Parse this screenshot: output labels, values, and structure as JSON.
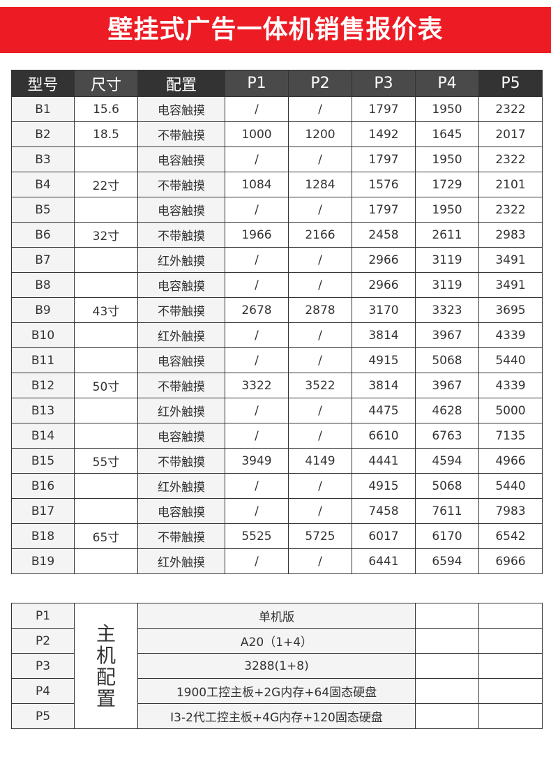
{
  "title": "壁挂式广告一体机销售报价表",
  "colors": {
    "banner": "#ed1c24",
    "header_dark": "#333333",
    "header_light": "#4a4a4a",
    "cell_gray": "#f4f4f4"
  },
  "price_table": {
    "headers": [
      "型号",
      "尺寸",
      "配置",
      "P1",
      "P2",
      "P3",
      "P4",
      "P5"
    ],
    "rows": [
      [
        "B1",
        "15.6",
        "电容触摸",
        "/",
        "/",
        "1797",
        "1950",
        "2322"
      ],
      [
        "B2",
        "18.5",
        "不带触摸",
        "1000",
        "1200",
        "1492",
        "1645",
        "2017"
      ],
      [
        "B3",
        "",
        "电容触摸",
        "/",
        "/",
        "1797",
        "1950",
        "2322"
      ],
      [
        "B4",
        "22寸",
        "不带触摸",
        "1084",
        "1284",
        "1576",
        "1729",
        "2101"
      ],
      [
        "B5",
        "",
        "电容触摸",
        "/",
        "/",
        "1797",
        "1950",
        "2322"
      ],
      [
        "B6",
        "32寸",
        "不带触摸",
        "1966",
        "2166",
        "2458",
        "2611",
        "2983"
      ],
      [
        "B7",
        "",
        "红外触摸",
        "/",
        "/",
        "2966",
        "3119",
        "3491"
      ],
      [
        "B8",
        "",
        "电容触摸",
        "/",
        "/",
        "2966",
        "3119",
        "3491"
      ],
      [
        "B9",
        "43寸",
        "不带触摸",
        "2678",
        "2878",
        "3170",
        "3323",
        "3695"
      ],
      [
        "B10",
        "",
        "红外触摸",
        "/",
        "/",
        "3814",
        "3967",
        "4339"
      ],
      [
        "B11",
        "",
        "电容触摸",
        "/",
        "/",
        "4915",
        "5068",
        "5440"
      ],
      [
        "B12",
        "50寸",
        "不带触摸",
        "3322",
        "3522",
        "3814",
        "3967",
        "4339"
      ],
      [
        "B13",
        "",
        "红外触摸",
        "/",
        "/",
        "4475",
        "4628",
        "5000"
      ],
      [
        "B14",
        "",
        "电容触摸",
        "/",
        "/",
        "6610",
        "6763",
        "7135"
      ],
      [
        "B15",
        "55寸",
        "不带触摸",
        "3949",
        "4149",
        "4441",
        "4594",
        "4966"
      ],
      [
        "B16",
        "",
        "红外触摸",
        "/",
        "/",
        "4915",
        "5068",
        "5440"
      ],
      [
        "B17",
        "",
        "电容触摸",
        "/",
        "/",
        "7458",
        "7611",
        "7983"
      ],
      [
        "B18",
        "65寸",
        "不带触摸",
        "5525",
        "5725",
        "6017",
        "6170",
        "6542"
      ],
      [
        "B19",
        "",
        "红外触摸",
        "/",
        "/",
        "6441",
        "6594",
        "6966"
      ]
    ]
  },
  "config_table": {
    "group_label": "主机配置",
    "rows": [
      {
        "code": "P1",
        "desc": "单机版"
      },
      {
        "code": "P2",
        "desc": "A20（1+4）"
      },
      {
        "code": "P3",
        "desc": "3288(1+8)"
      },
      {
        "code": "P4",
        "desc": "1900工控主板+2G内存+64固态硬盘"
      },
      {
        "code": "P5",
        "desc": "I3-2代工控主板+4G内存+120固态硬盘"
      }
    ]
  }
}
